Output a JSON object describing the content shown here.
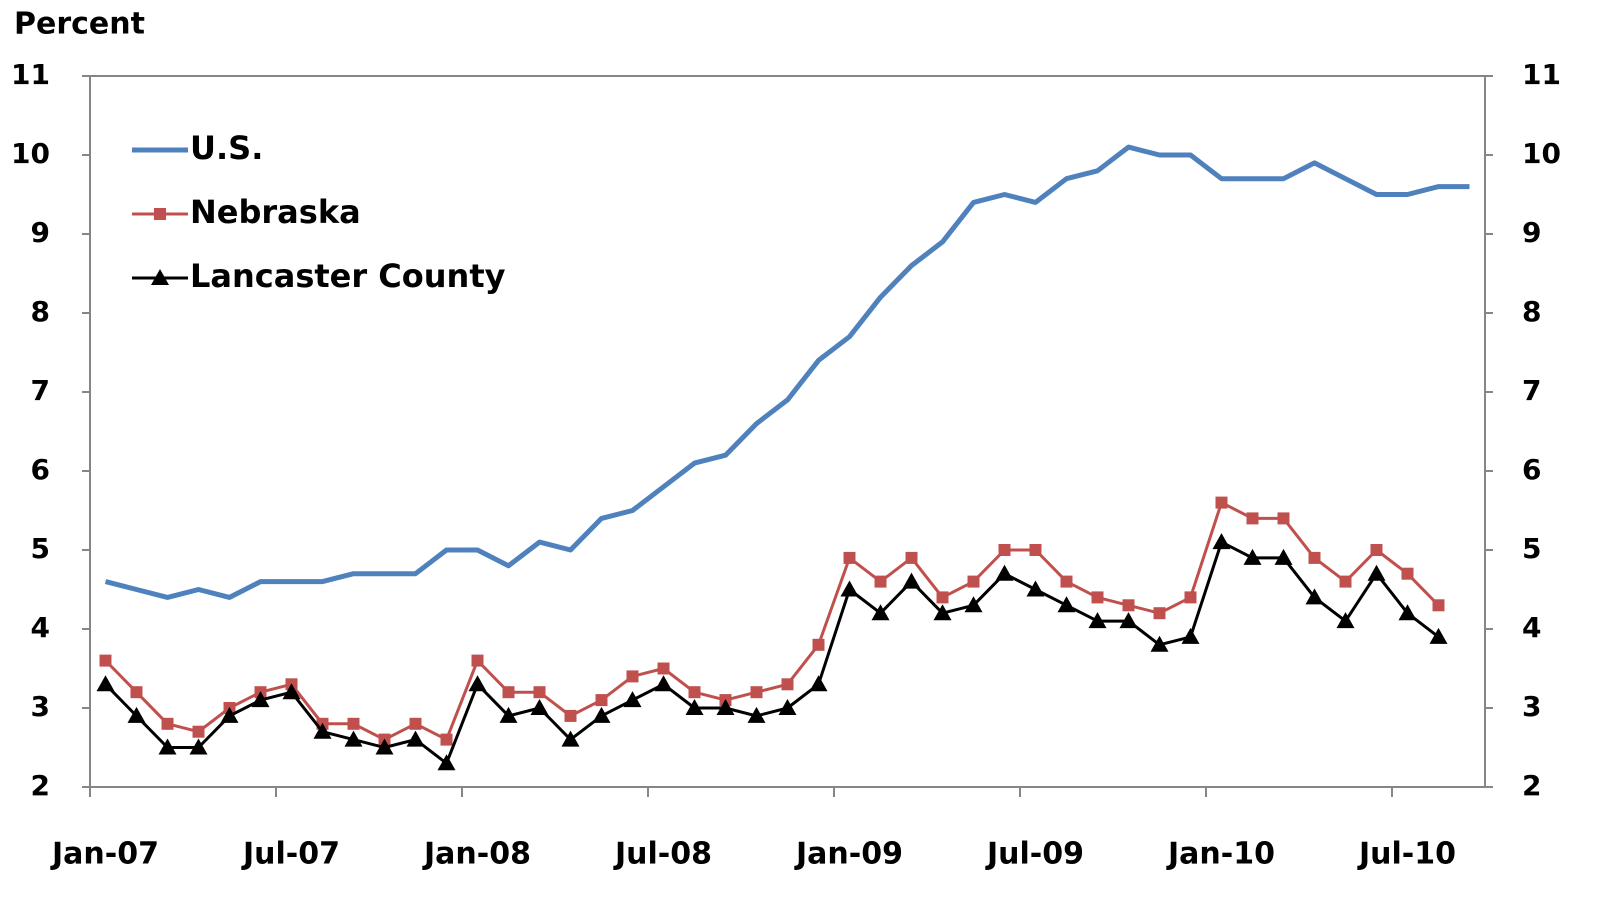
{
  "chart_data": {
    "type": "line",
    "y_label": "Percent",
    "categories": [
      "Jan-07",
      null,
      null,
      null,
      null,
      null,
      "Jul-07",
      null,
      null,
      null,
      null,
      null,
      "Jan-08",
      null,
      null,
      null,
      null,
      null,
      "Jul-08",
      null,
      null,
      null,
      null,
      null,
      "Jan-09",
      null,
      null,
      null,
      null,
      null,
      "Jul-09",
      null,
      null,
      null,
      null,
      null,
      "Jan-10",
      null,
      null,
      null,
      null,
      null,
      "Jul-10",
      null,
      null
    ],
    "series": [
      {
        "name": "U.S.",
        "color": "#4f81bd",
        "marker": "none",
        "values": [
          4.6,
          4.5,
          4.4,
          4.5,
          4.4,
          4.6,
          4.6,
          4.6,
          4.7,
          4.7,
          4.7,
          5.0,
          5.0,
          4.8,
          5.1,
          5.0,
          5.4,
          5.5,
          5.8,
          6.1,
          6.2,
          6.6,
          6.9,
          7.4,
          7.7,
          8.2,
          8.6,
          8.9,
          9.4,
          9.5,
          9.4,
          9.7,
          9.8,
          10.1,
          10.0,
          10.0,
          9.7,
          9.7,
          9.7,
          9.9,
          9.7,
          9.5,
          9.5,
          9.6,
          9.6
        ]
      },
      {
        "name": "Nebraska",
        "color": "#c0504d",
        "marker": "square",
        "values": [
          3.6,
          3.2,
          2.8,
          2.7,
          3.0,
          3.2,
          3.3,
          2.8,
          2.8,
          2.6,
          2.8,
          2.6,
          3.6,
          3.2,
          3.2,
          2.9,
          3.1,
          3.4,
          3.5,
          3.2,
          3.1,
          3.2,
          3.3,
          3.8,
          4.9,
          4.6,
          4.9,
          4.4,
          4.6,
          5.0,
          5.0,
          4.6,
          4.4,
          4.3,
          4.2,
          4.4,
          5.6,
          5.4,
          5.4,
          4.9,
          4.6,
          5.0,
          4.7,
          4.3,
          null
        ]
      },
      {
        "name": "Lancaster County",
        "color": "#000000",
        "marker": "triangle",
        "values": [
          3.3,
          2.9,
          2.5,
          2.5,
          2.9,
          3.1,
          3.2,
          2.7,
          2.6,
          2.5,
          2.6,
          2.3,
          3.3,
          2.9,
          3.0,
          2.6,
          2.9,
          3.1,
          3.3,
          3.0,
          3.0,
          2.9,
          3.0,
          3.3,
          4.5,
          4.2,
          4.6,
          4.2,
          4.3,
          4.7,
          4.5,
          4.3,
          4.1,
          4.1,
          3.8,
          3.9,
          5.1,
          4.9,
          4.9,
          4.4,
          4.1,
          4.7,
          4.2,
          3.9,
          null
        ]
      }
    ],
    "ylim": [
      2,
      11
    ],
    "yticks": [
      2,
      3,
      4,
      5,
      6,
      7,
      8,
      9,
      10,
      11
    ],
    "y2lim": [
      2,
      11
    ],
    "y2ticks": [
      2,
      3,
      4,
      5,
      6,
      7,
      8,
      9,
      10,
      11
    ],
    "grid": false,
    "legend": "upper left"
  }
}
